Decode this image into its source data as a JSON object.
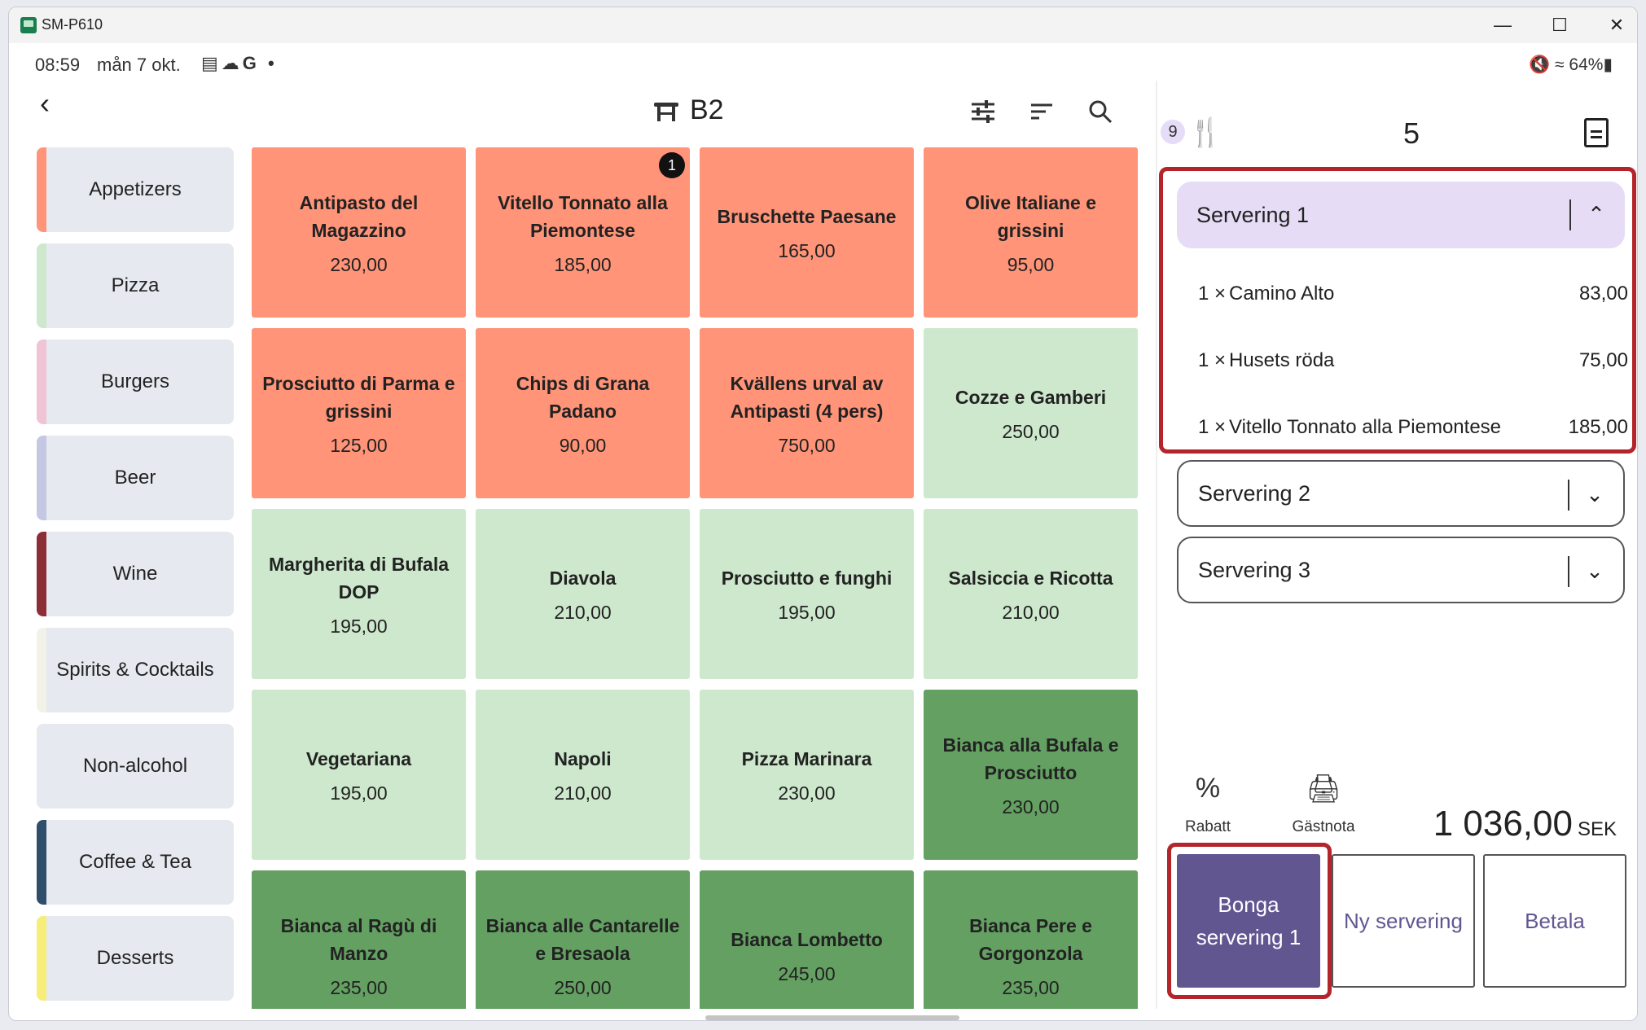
{
  "window": {
    "title": "SM-P610",
    "icon": "app-window-icon"
  },
  "status_bar": {
    "time": "08:59",
    "date": "mån 7 okt.",
    "icons": "G •",
    "battery": "64%"
  },
  "header": {
    "table_name": "B2",
    "icons": [
      "back-arrow-icon",
      "table-icon",
      "sliders-icon",
      "sort-icon",
      "search-icon"
    ]
  },
  "categories": [
    {
      "label": "Appetizers",
      "color": "#ff9478"
    },
    {
      "label": "Pizza",
      "color": "#cde8cc"
    },
    {
      "label": "Burgers",
      "color": "#f0c4d4"
    },
    {
      "label": "Beer",
      "color": "#c5c8e3"
    },
    {
      "label": "Wine",
      "color": "#8b2e36"
    },
    {
      "label": "Spirits & Cocktails",
      "color": "#f2f2e8"
    },
    {
      "label": "Non-alcohol",
      "color": "#e6e9ef"
    },
    {
      "label": "Coffee & Tea",
      "color": "#2f4e6a"
    },
    {
      "label": "Desserts",
      "color": "#f7ee7a"
    }
  ],
  "products": [
    {
      "name": "Antipasto del Magazzino",
      "price": "230,00",
      "color": "#ff9478"
    },
    {
      "name": "Vitello Tonnato alla Piemontese",
      "price": "185,00",
      "color": "#ff9478",
      "badge": "1"
    },
    {
      "name": "Bruschette Paesane",
      "price": "165,00",
      "color": "#ff9478"
    },
    {
      "name": "Olive Italiane e grissini",
      "price": "95,00",
      "color": "#ff9478"
    },
    {
      "name": "Prosciutto di Parma e grissini",
      "price": "125,00",
      "color": "#ff9478"
    },
    {
      "name": "Chips di Grana Padano",
      "price": "90,00",
      "color": "#ff9478"
    },
    {
      "name": "Kvällens urval av Antipasti (4 pers)",
      "price": "750,00",
      "color": "#ff9478"
    },
    {
      "name": "Cozze e Gamberi",
      "price": "250,00",
      "color": "#cde8cc"
    },
    {
      "name": "Margherita di Bufala DOP",
      "price": "195,00",
      "color": "#cde8cc"
    },
    {
      "name": "Diavola",
      "price": "210,00",
      "color": "#cde8cc"
    },
    {
      "name": "Prosciutto e funghi",
      "price": "195,00",
      "color": "#cde8cc"
    },
    {
      "name": "Salsiccia e Ricotta",
      "price": "210,00",
      "color": "#cde8cc"
    },
    {
      "name": "Vegetariana",
      "price": "195,00",
      "color": "#cde8cc"
    },
    {
      "name": "Napoli",
      "price": "210,00",
      "color": "#cde8cc"
    },
    {
      "name": "Pizza Marinara",
      "price": "230,00",
      "color": "#cde8cc"
    },
    {
      "name": "Bianca alla Bufala e Prosciutto",
      "price": "230,00",
      "color": "#63a062"
    },
    {
      "name": "Bianca al Ragù di Manzo",
      "price": "235,00",
      "color": "#63a062"
    },
    {
      "name": "Bianca alle Cantarelle e Bresaola",
      "price": "250,00",
      "color": "#63a062"
    },
    {
      "name": "Bianca Lombetto",
      "price": "245,00",
      "color": "#63a062"
    },
    {
      "name": "Bianca Pere e Gorgonzola",
      "price": "235,00",
      "color": "#63a062"
    }
  ],
  "order": {
    "guest_badge": "9",
    "guest_count": "5",
    "servings": [
      {
        "label": "Servering 1",
        "expanded": true,
        "items": [
          {
            "qty": "1 ×",
            "name": "Camino Alto",
            "price": "83,00"
          },
          {
            "qty": "1 ×",
            "name": "Husets röda",
            "price": "75,00"
          },
          {
            "qty": "1 ×",
            "name": "Vitello Tonnato alla Piemontese",
            "price": "185,00"
          }
        ]
      },
      {
        "label": "Servering 2",
        "expanded": false,
        "items": []
      },
      {
        "label": "Servering 3",
        "expanded": false,
        "items": []
      }
    ],
    "tools": {
      "discount": "Rabatt",
      "guest_bill": "Gästnota"
    },
    "total": "1 036,00",
    "currency": "SEK",
    "buttons": {
      "send": "Bonga servering 1",
      "new_serving": "Ny servering",
      "pay": "Betala"
    }
  },
  "colors": {
    "highlight": "#b3252b",
    "primary": "#625691",
    "serving_open": "#e6dcf5"
  }
}
